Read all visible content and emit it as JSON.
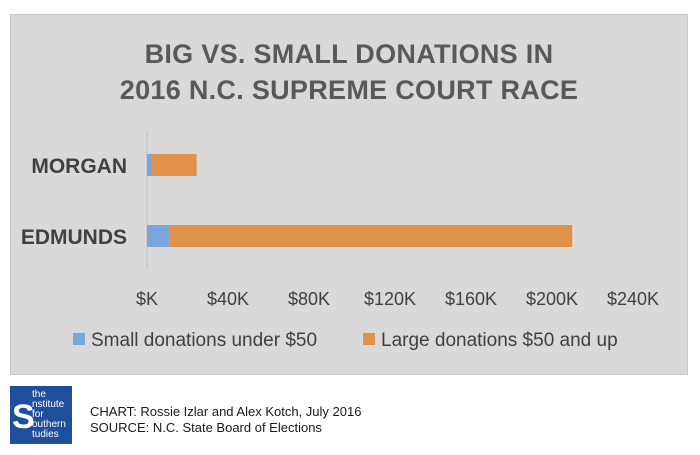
{
  "chart_data": {
    "type": "bar",
    "orientation": "horizontal",
    "stacked": true,
    "title_lines": [
      "BIG VS. SMALL DONATIONS IN",
      "2016 N.C. SUPREME COURT RACE"
    ],
    "categories": [
      "MORGAN",
      "EDMUNDS"
    ],
    "series": [
      {
        "name": "Small donations under $50",
        "values": [
          2500,
          11000
        ],
        "color": "#7aa6dc"
      },
      {
        "name": "Large donations $50 and up",
        "values": [
          22000,
          199000
        ],
        "color": "#e0914a"
      }
    ],
    "xlim": [
      0,
      240000
    ],
    "x_ticks": [
      0,
      40000,
      80000,
      120000,
      160000,
      200000,
      240000
    ],
    "x_tick_labels": [
      "$K",
      "$40K",
      "$80K",
      "$120K",
      "$160K",
      "$200K",
      "$240K"
    ],
    "grid": false,
    "legend_position": "bottom"
  },
  "footer": {
    "logo_text": [
      "the",
      "nstitute",
      "for",
      "outhern",
      "tudies"
    ],
    "logo_initial": "S",
    "credit": "CHART: Rossie Izlar and Alex Kotch, July 2016",
    "source": "SOURCE: N.C. State Board of Elections"
  }
}
